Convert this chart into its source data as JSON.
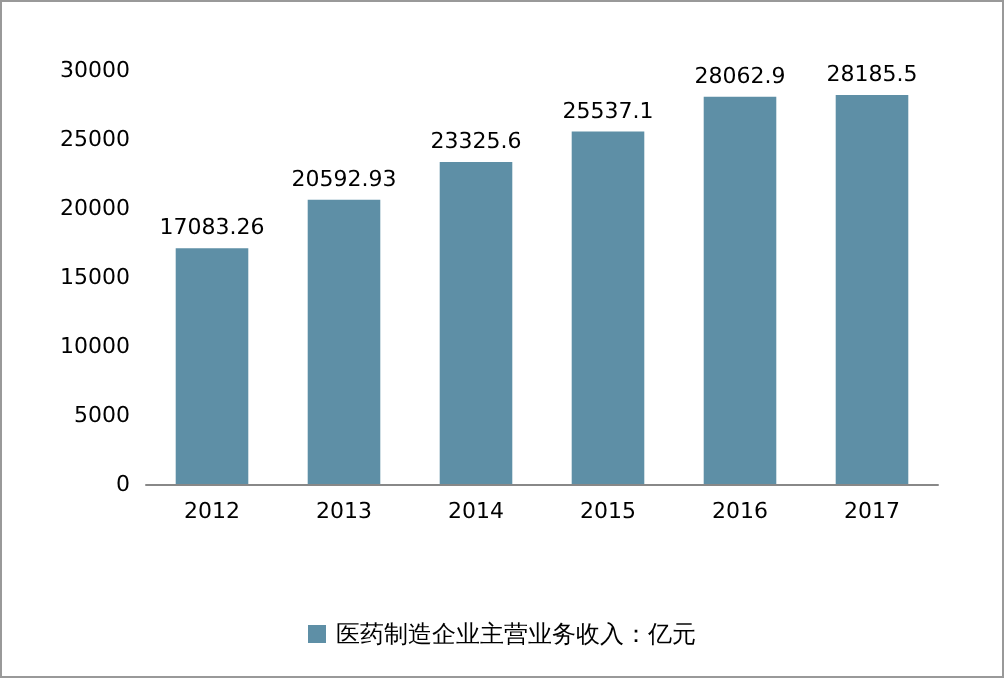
{
  "chart_data": {
    "type": "bar",
    "categories": [
      "2012",
      "2013",
      "2014",
      "2015",
      "2016",
      "2017"
    ],
    "series": [
      {
        "name": "医药制造企业主营业务收入：亿元",
        "color": "#5e8fa6",
        "values": [
          17083.26,
          20592.93,
          23325.6,
          25537.1,
          28062.9,
          28185.5
        ]
      }
    ],
    "ylim": [
      0,
      30000
    ],
    "yticks": [
      0,
      5000,
      10000,
      15000,
      20000,
      25000,
      30000
    ],
    "grid": false,
    "legend": "bottom",
    "data_labels": true
  }
}
